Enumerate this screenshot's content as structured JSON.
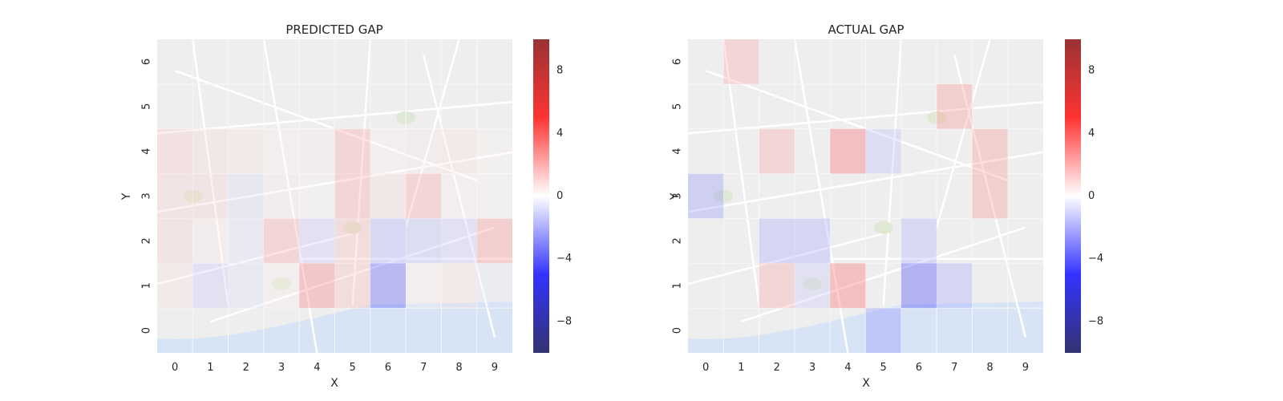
{
  "chart_data": [
    {
      "type": "heatmap",
      "title": "PREDICTED GAP",
      "xlabel": "X",
      "ylabel": "Y",
      "x_ticks": [
        "0",
        "1",
        "2",
        "3",
        "4",
        "5",
        "6",
        "7",
        "8",
        "9"
      ],
      "y_ticks": [
        "0",
        "1",
        "2",
        "3",
        "4",
        "5",
        "6"
      ],
      "colorbar_ticks": [
        8,
        4,
        0,
        -4,
        -8
      ],
      "colorbar_tick_labels": [
        "8",
        "4",
        "0",
        "−4",
        "−8"
      ],
      "vmin": -10,
      "vmax": 10,
      "background": "map of Porto",
      "cells": [
        {
          "x": 0,
          "y": 1,
          "v": 0.6
        },
        {
          "x": 1,
          "y": 1,
          "v": -1.2
        },
        {
          "x": 2,
          "y": 1,
          "v": -0.6
        },
        {
          "x": 3,
          "y": 1,
          "v": 0.3
        },
        {
          "x": 4,
          "y": 1,
          "v": 3
        },
        {
          "x": 5,
          "y": 1,
          "v": 1.5
        },
        {
          "x": 6,
          "y": 1,
          "v": -4
        },
        {
          "x": 7,
          "y": 1,
          "v": 0.3
        },
        {
          "x": 8,
          "y": 1,
          "v": 0.6
        },
        {
          "x": 9,
          "y": 1,
          "v": -0.5
        },
        {
          "x": 0,
          "y": 2,
          "v": 1
        },
        {
          "x": 1,
          "y": 2,
          "v": 0.4
        },
        {
          "x": 2,
          "y": 2,
          "v": -0.6
        },
        {
          "x": 3,
          "y": 2,
          "v": 2
        },
        {
          "x": 4,
          "y": 2,
          "v": -1.2
        },
        {
          "x": 5,
          "y": 2,
          "v": 1.5
        },
        {
          "x": 6,
          "y": 2,
          "v": -1.8
        },
        {
          "x": 7,
          "y": 2,
          "v": -1.5
        },
        {
          "x": 8,
          "y": 2,
          "v": -1.2
        },
        {
          "x": 9,
          "y": 2,
          "v": 2.5
        },
        {
          "x": 0,
          "y": 3,
          "v": 1
        },
        {
          "x": 1,
          "y": 3,
          "v": 1
        },
        {
          "x": 2,
          "y": 3,
          "v": -0.8
        },
        {
          "x": 3,
          "y": 3,
          "v": 0.4
        },
        {
          "x": 4,
          "y": 3,
          "v": 0.2
        },
        {
          "x": 5,
          "y": 3,
          "v": 2
        },
        {
          "x": 6,
          "y": 3,
          "v": 0.8
        },
        {
          "x": 7,
          "y": 3,
          "v": 2
        },
        {
          "x": 8,
          "y": 3,
          "v": 0.3
        },
        {
          "x": 9,
          "y": 3,
          "v": 0.2
        },
        {
          "x": 0,
          "y": 4,
          "v": 1.2
        },
        {
          "x": 1,
          "y": 4,
          "v": 0.8
        },
        {
          "x": 2,
          "y": 4,
          "v": 0.6
        },
        {
          "x": 3,
          "y": 4,
          "v": 0.3
        },
        {
          "x": 4,
          "y": 4,
          "v": 0.4
        },
        {
          "x": 5,
          "y": 4,
          "v": 2
        },
        {
          "x": 6,
          "y": 4,
          "v": 0.3
        },
        {
          "x": 7,
          "y": 4,
          "v": 0.5
        },
        {
          "x": 8,
          "y": 4,
          "v": 0.6
        },
        {
          "x": 9,
          "y": 4,
          "v": 0.2
        }
      ]
    },
    {
      "type": "heatmap",
      "title": "ACTUAL GAP",
      "xlabel": "X",
      "ylabel": "Y",
      "x_ticks": [
        "0",
        "1",
        "2",
        "3",
        "4",
        "5",
        "6",
        "7",
        "8",
        "9"
      ],
      "y_ticks": [
        "0",
        "1",
        "2",
        "3",
        "4",
        "5",
        "6"
      ],
      "colorbar_ticks": [
        8,
        4,
        0,
        -4,
        -8
      ],
      "colorbar_tick_labels": [
        "8",
        "4",
        "0",
        "−4",
        "−8"
      ],
      "vmin": -10,
      "vmax": 10,
      "background": "map of Porto",
      "cells": [
        {
          "x": 1,
          "y": 6,
          "v": 2
        },
        {
          "x": 7,
          "y": 5,
          "v": 2.5
        },
        {
          "x": 2,
          "y": 4,
          "v": 2
        },
        {
          "x": 4,
          "y": 4,
          "v": 3.5
        },
        {
          "x": 5,
          "y": 4,
          "v": -1.5
        },
        {
          "x": 8,
          "y": 4,
          "v": 2.5
        },
        {
          "x": 0,
          "y": 3,
          "v": -2.5
        },
        {
          "x": 8,
          "y": 3,
          "v": 2.5
        },
        {
          "x": 2,
          "y": 2,
          "v": -2
        },
        {
          "x": 3,
          "y": 2,
          "v": -2
        },
        {
          "x": 6,
          "y": 2,
          "v": -1.8
        },
        {
          "x": 2,
          "y": 1,
          "v": 2
        },
        {
          "x": 3,
          "y": 1,
          "v": -1.2
        },
        {
          "x": 4,
          "y": 1,
          "v": 3.5
        },
        {
          "x": 6,
          "y": 1,
          "v": -4.5
        },
        {
          "x": 7,
          "y": 1,
          "v": -2
        },
        {
          "x": 5,
          "y": 0,
          "v": -2.5
        }
      ]
    }
  ]
}
